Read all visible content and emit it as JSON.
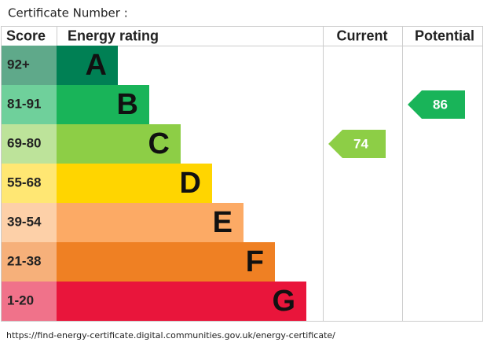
{
  "chart_data": {
    "type": "epc",
    "title": "Certificate Number :",
    "columns": [
      "Score",
      "Energy rating",
      "Current",
      "Potential"
    ],
    "bands": [
      {
        "score": "92+",
        "letter": "A",
        "color": "#008054",
        "score_color": "#5fa98a"
      },
      {
        "score": "81-91",
        "letter": "B",
        "color": "#19b459",
        "score_color": "#6fd09b"
      },
      {
        "score": "69-80",
        "letter": "C",
        "color": "#8dce46",
        "score_color": "#bde39a"
      },
      {
        "score": "55-68",
        "letter": "D",
        "color": "#ffd500",
        "score_color": "#ffe773"
      },
      {
        "score": "39-54",
        "letter": "E",
        "color": "#fcaa65",
        "score_color": "#fdd0a8"
      },
      {
        "score": "21-38",
        "letter": "F",
        "color": "#ef8023",
        "score_color": "#f6b07a"
      },
      {
        "score": "1-20",
        "letter": "G",
        "color": "#e9153b",
        "score_color": "#f0728a"
      }
    ],
    "current": 74,
    "potential": 86,
    "source": "https://find-energy-certificate.digital.communities.gov.uk/energy-certificate/"
  }
}
